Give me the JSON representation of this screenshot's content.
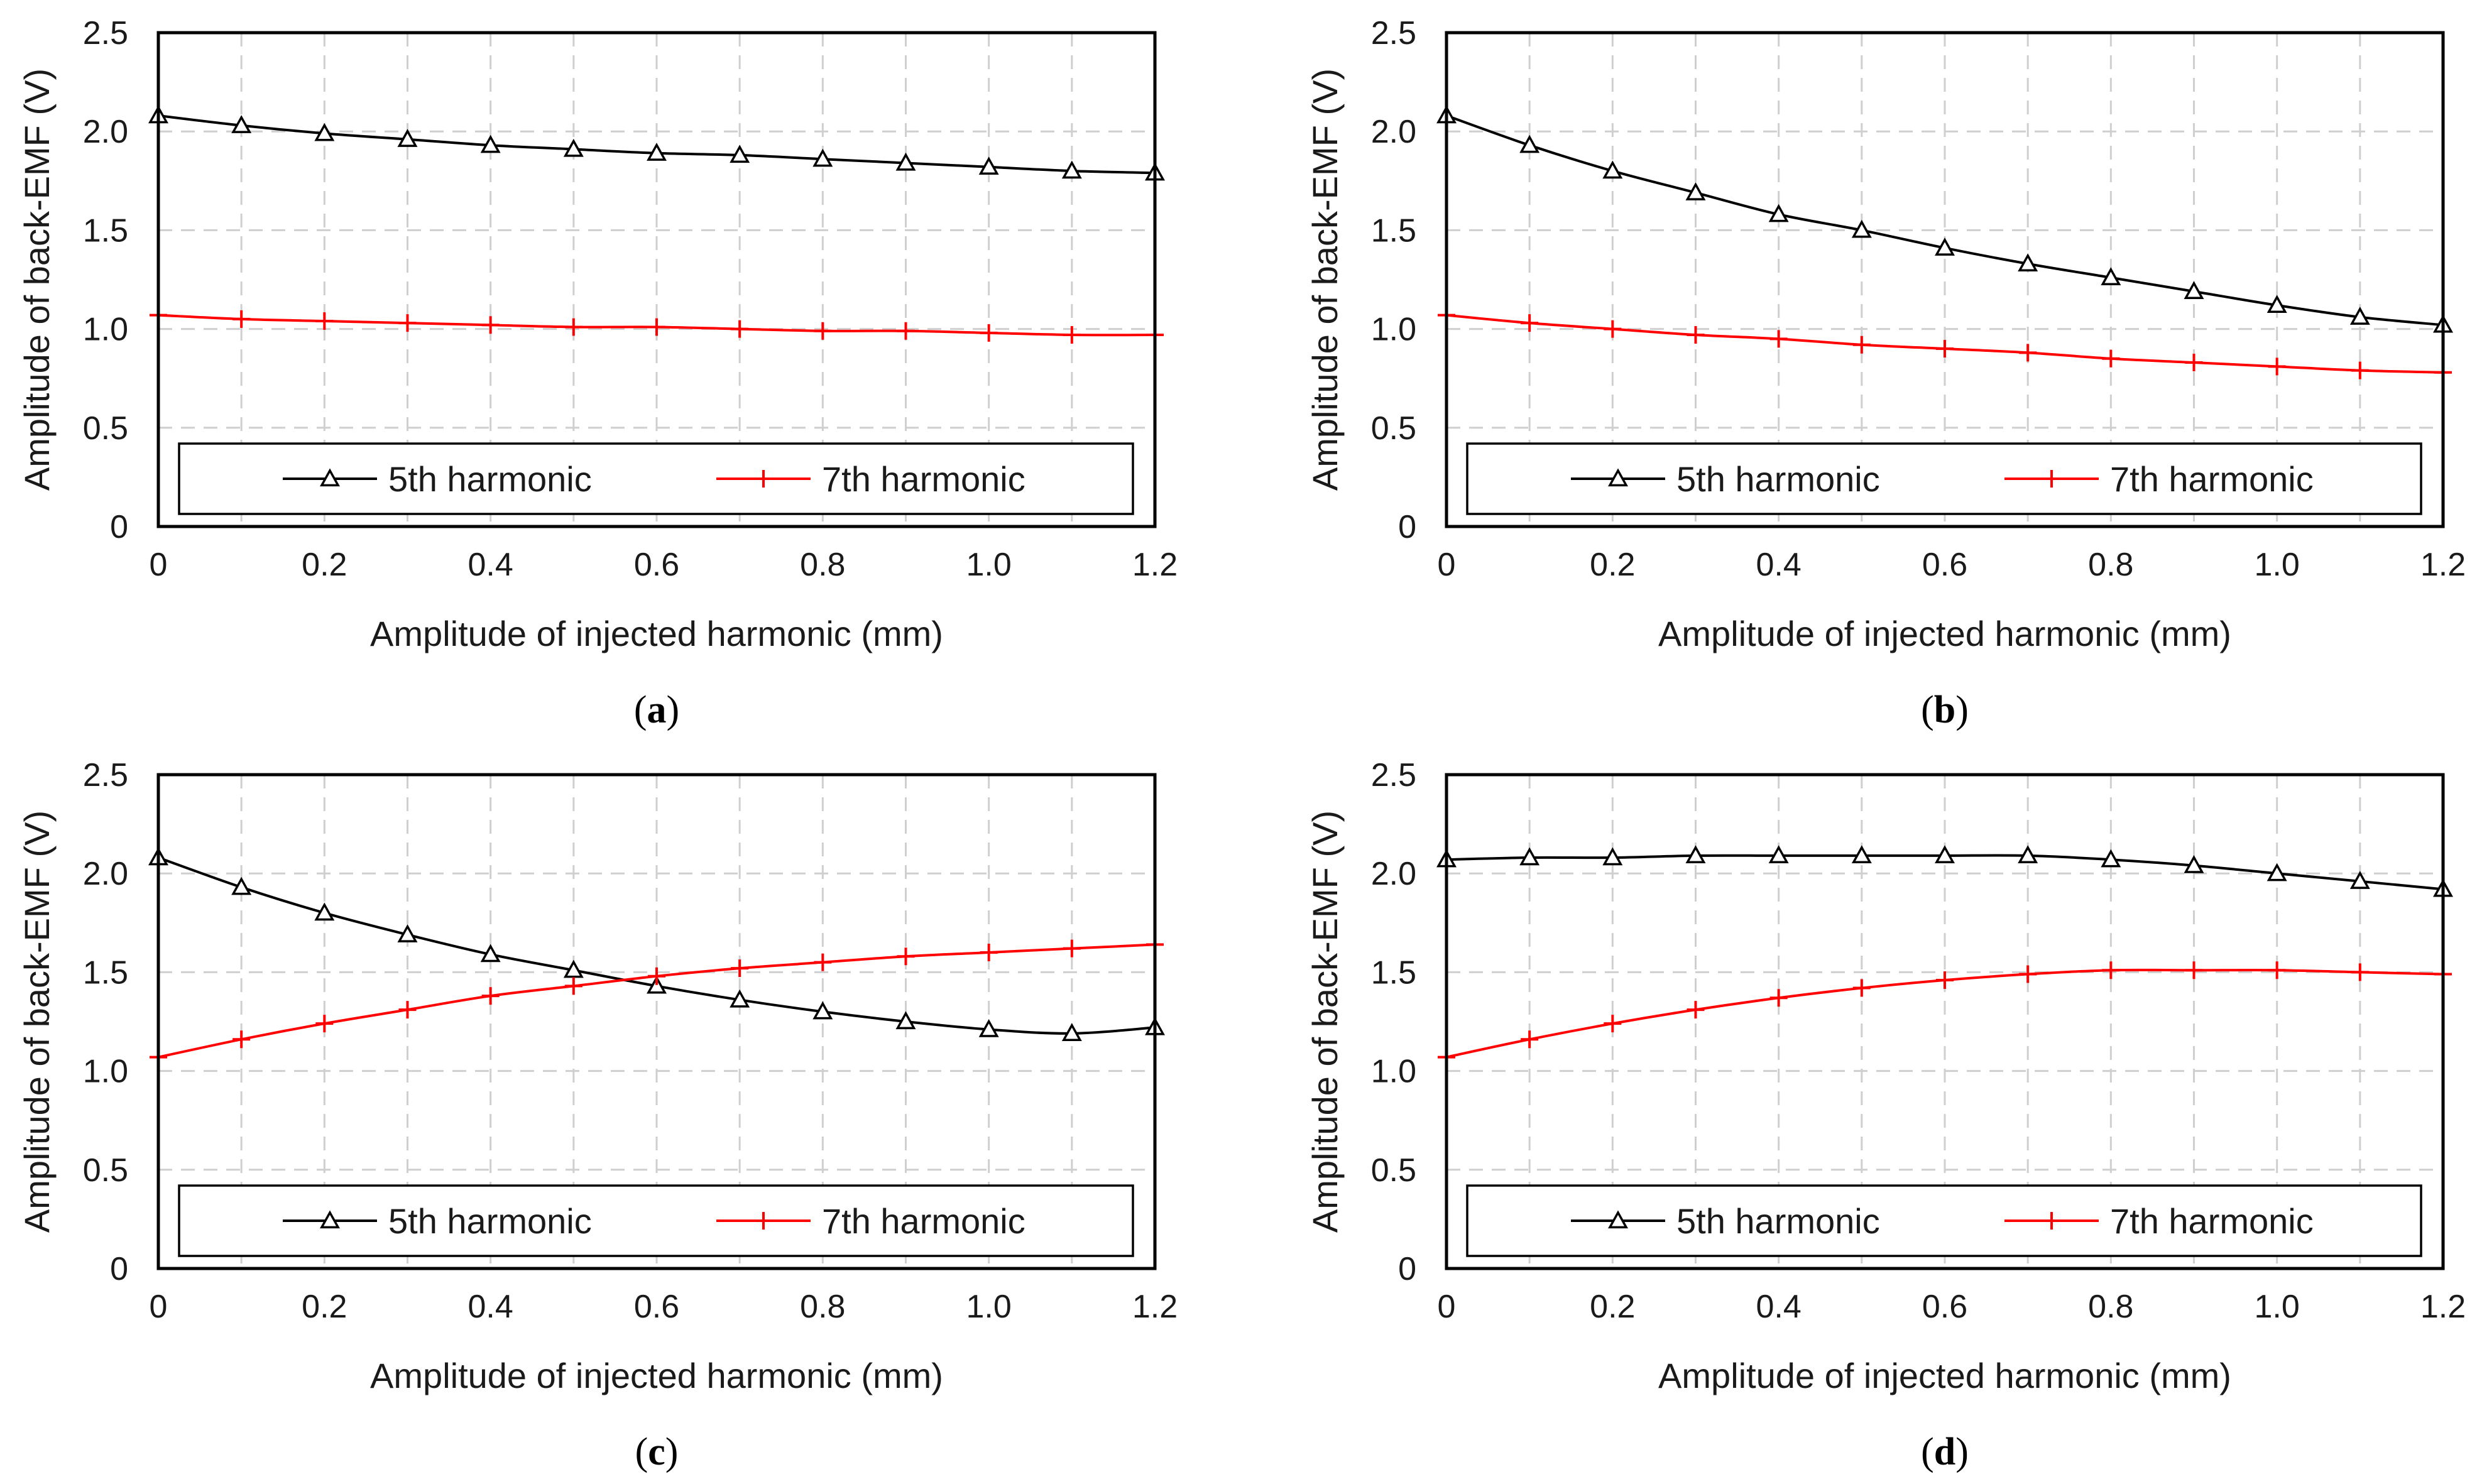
{
  "chart_data": [
    {
      "type": "line",
      "panel_label": "a",
      "xlabel": "Amplitude of injected harmonic (mm)",
      "ylabel": "Amplitude of back-EMF  (V)",
      "xlim": [
        0,
        1.2
      ],
      "ylim": [
        0,
        2.5
      ],
      "x_ticks": [
        "0",
        "0.2",
        "0.4",
        "0.6",
        "0.8",
        "1.0",
        "1.2"
      ],
      "y_ticks": [
        "0",
        "0.5",
        "1.0",
        "1.5",
        "2.0",
        "2.5"
      ],
      "grid": true,
      "legend_position": "bottom",
      "x": [
        0,
        0.1,
        0.2,
        0.3,
        0.4,
        0.5,
        0.6,
        0.7,
        0.8,
        0.9,
        1.0,
        1.1,
        1.2
      ],
      "series": [
        {
          "name": "5th harmonic",
          "color": "#000000",
          "marker": "triangle",
          "values": [
            2.08,
            2.03,
            1.99,
            1.96,
            1.93,
            1.91,
            1.89,
            1.88,
            1.86,
            1.84,
            1.82,
            1.8,
            1.79
          ]
        },
        {
          "name": "7th harmonic",
          "color": "#ff0000",
          "marker": "plus",
          "values": [
            1.07,
            1.05,
            1.04,
            1.03,
            1.02,
            1.01,
            1.01,
            1.0,
            0.99,
            0.99,
            0.98,
            0.97,
            0.97
          ]
        }
      ]
    },
    {
      "type": "line",
      "panel_label": "b",
      "xlabel": "Amplitude of injected harmonic (mm)",
      "ylabel": "Amplitude of back-EMF  (V)",
      "xlim": [
        0,
        1.2
      ],
      "ylim": [
        0,
        2.5
      ],
      "x_ticks": [
        "0",
        "0.2",
        "0.4",
        "0.6",
        "0.8",
        "1.0",
        "1.2"
      ],
      "y_ticks": [
        "0",
        "0.5",
        "1.0",
        "1.5",
        "2.0",
        "2.5"
      ],
      "grid": true,
      "legend_position": "bottom",
      "x": [
        0,
        0.1,
        0.2,
        0.3,
        0.4,
        0.5,
        0.6,
        0.7,
        0.8,
        0.9,
        1.0,
        1.1,
        1.2
      ],
      "series": [
        {
          "name": "5th harmonic",
          "color": "#000000",
          "marker": "triangle",
          "values": [
            2.08,
            1.93,
            1.8,
            1.69,
            1.58,
            1.5,
            1.41,
            1.33,
            1.26,
            1.19,
            1.12,
            1.06,
            1.02
          ]
        },
        {
          "name": "7th harmonic",
          "color": "#ff0000",
          "marker": "plus",
          "values": [
            1.07,
            1.03,
            1.0,
            0.97,
            0.95,
            0.92,
            0.9,
            0.88,
            0.85,
            0.83,
            0.81,
            0.79,
            0.78
          ]
        }
      ]
    },
    {
      "type": "line",
      "panel_label": "c",
      "xlabel": "Amplitude of injected harmonic (mm)",
      "ylabel": "Amplitude of back-EMF  (V)",
      "xlim": [
        0,
        1.2
      ],
      "ylim": [
        0,
        2.5
      ],
      "x_ticks": [
        "0",
        "0.2",
        "0.4",
        "0.6",
        "0.8",
        "1.0",
        "1.2"
      ],
      "y_ticks": [
        "0",
        "0.5",
        "1.0",
        "1.5",
        "2.0",
        "2.5"
      ],
      "grid": true,
      "legend_position": "bottom",
      "x": [
        0,
        0.1,
        0.2,
        0.3,
        0.4,
        0.5,
        0.6,
        0.7,
        0.8,
        0.9,
        1.0,
        1.1,
        1.2
      ],
      "series": [
        {
          "name": "5th harmonic",
          "color": "#000000",
          "marker": "triangle",
          "values": [
            2.08,
            1.93,
            1.8,
            1.69,
            1.59,
            1.51,
            1.43,
            1.36,
            1.3,
            1.25,
            1.21,
            1.19,
            1.22
          ]
        },
        {
          "name": "7th harmonic",
          "color": "#ff0000",
          "marker": "plus",
          "values": [
            1.07,
            1.16,
            1.24,
            1.31,
            1.38,
            1.43,
            1.48,
            1.52,
            1.55,
            1.58,
            1.6,
            1.62,
            1.64
          ]
        }
      ]
    },
    {
      "type": "line",
      "panel_label": "d",
      "xlabel": "Amplitude of injected harmonic (mm)",
      "ylabel": "Amplitude of back-EMF  (V)",
      "xlim": [
        0,
        1.2
      ],
      "ylim": [
        0,
        2.5
      ],
      "x_ticks": [
        "0",
        "0.2",
        "0.4",
        "0.6",
        "0.8",
        "1.0",
        "1.2"
      ],
      "y_ticks": [
        "0",
        "0.5",
        "1.0",
        "1.5",
        "2.0",
        "2.5"
      ],
      "grid": true,
      "legend_position": "bottom",
      "x": [
        0,
        0.1,
        0.2,
        0.3,
        0.4,
        0.5,
        0.6,
        0.7,
        0.8,
        0.9,
        1.0,
        1.1,
        1.2
      ],
      "series": [
        {
          "name": "5th harmonic",
          "color": "#000000",
          "marker": "triangle",
          "values": [
            2.07,
            2.08,
            2.08,
            2.09,
            2.09,
            2.09,
            2.09,
            2.09,
            2.07,
            2.04,
            2.0,
            1.96,
            1.92
          ]
        },
        {
          "name": "7th harmonic",
          "color": "#ff0000",
          "marker": "plus",
          "values": [
            1.07,
            1.16,
            1.24,
            1.31,
            1.37,
            1.42,
            1.46,
            1.49,
            1.51,
            1.51,
            1.51,
            1.5,
            1.49
          ]
        }
      ]
    }
  ]
}
